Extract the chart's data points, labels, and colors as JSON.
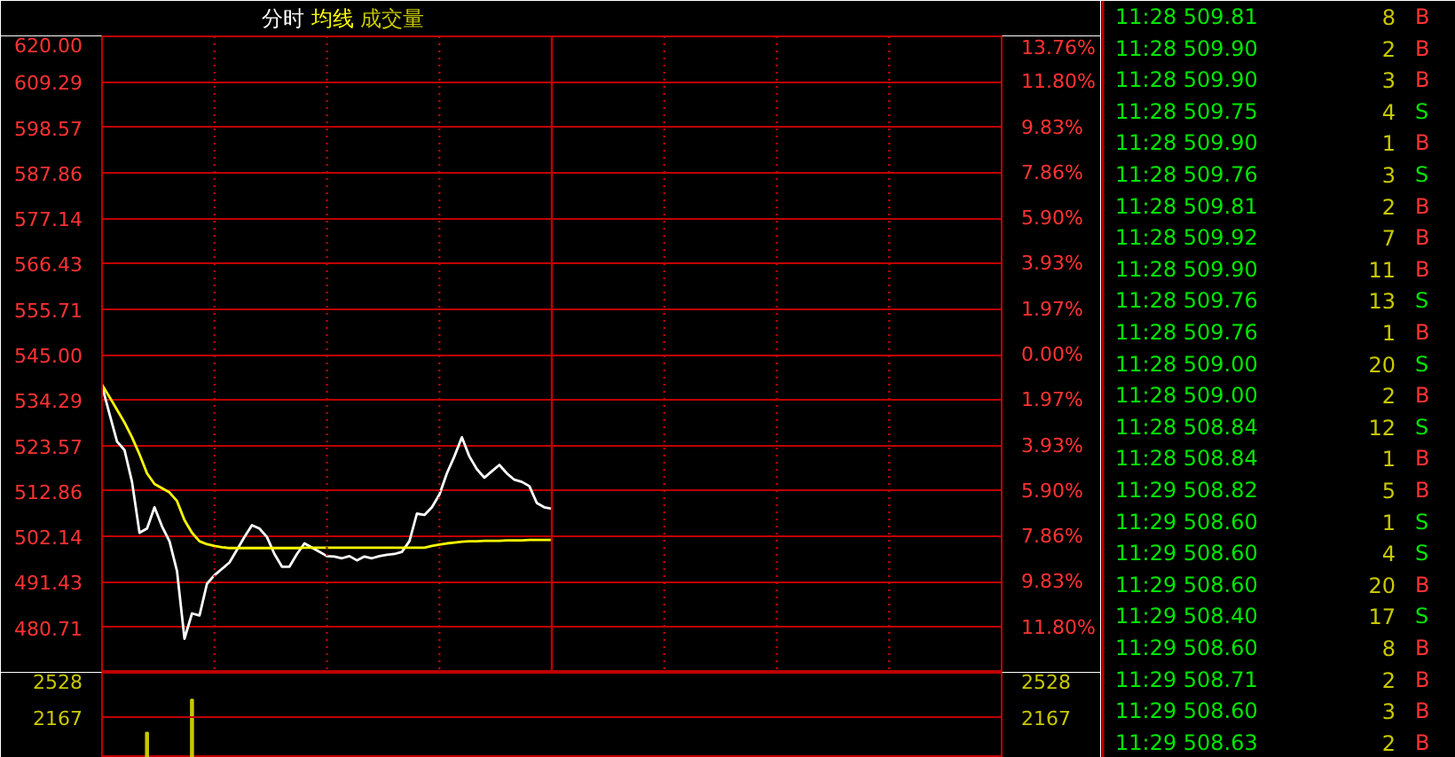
{
  "chart_data": [
    {
      "type": "line",
      "categories": [
        null,
        null,
        null,
        null,
        null,
        null,
        null,
        null,
        null,
        null,
        null,
        null,
        null,
        null,
        null,
        null,
        null,
        null,
        null,
        null,
        null,
        null,
        null,
        null,
        null,
        null,
        null,
        null,
        null,
        null,
        null,
        null,
        null,
        null,
        null,
        null,
        null,
        null,
        null,
        null,
        null,
        null,
        null,
        null,
        null,
        null,
        null,
        null,
        null,
        null,
        null,
        null,
        null,
        null,
        null,
        null,
        null,
        null,
        null,
        null,
        null,
        null,
        null,
        null,
        null,
        null,
        null,
        null,
        null,
        null,
        null,
        null,
        null,
        null,
        null,
        null,
        null,
        null,
        null,
        null,
        null,
        null,
        null,
        null,
        null,
        null,
        null,
        null,
        null,
        null,
        null,
        null,
        null,
        null,
        null,
        null,
        null,
        null,
        null,
        null,
        null,
        null,
        null,
        null,
        null,
        null,
        null,
        null,
        null,
        null,
        null,
        null,
        null,
        null,
        null,
        null,
        null,
        null,
        null,
        null,
        null
      ],
      "series": [
        {
          "name": "分时",
          "color": "#ffffff",
          "values": [
            537.6,
            531,
            524.5,
            522.5,
            515,
            503,
            504,
            509,
            504.5,
            501,
            494,
            478,
            484,
            483.5,
            491,
            493,
            494.5,
            496,
            499,
            502,
            504.8,
            504,
            502,
            498,
            495,
            495,
            498,
            500.5,
            499.5,
            498.5,
            497.5,
            497.4,
            497,
            497.5,
            496.5,
            497.4,
            497,
            497.5,
            497.8,
            498,
            498.5,
            501,
            507.5,
            507.2,
            509,
            512,
            517,
            521,
            525.5,
            521,
            518,
            516,
            517.5,
            519,
            517,
            515.5,
            515,
            514,
            510,
            509,
            508.7,
            null,
            null,
            null,
            null,
            null,
            null,
            null,
            null,
            null,
            null,
            null,
            null,
            null,
            null,
            null,
            null,
            null,
            null,
            null,
            null,
            null,
            null,
            null,
            null,
            null,
            null,
            null,
            null,
            null,
            null,
            null,
            null,
            null,
            null,
            null,
            null,
            null,
            null,
            null,
            null,
            null,
            null,
            null,
            null,
            null,
            null,
            null,
            null,
            null,
            null,
            null,
            null,
            null,
            null,
            null,
            null,
            null,
            null,
            null,
            null
          ]
        },
        {
          "name": "均线",
          "color": "#ffff00",
          "values": [
            537.9,
            535,
            532,
            529,
            525.5,
            521.5,
            517,
            514.5,
            513.5,
            512.5,
            510.5,
            506,
            503,
            501,
            500.3,
            499.9,
            499.6,
            499.4,
            499.4,
            499.4,
            499.4,
            499.4,
            499.4,
            499.4,
            499.4,
            499.4,
            499.4,
            499.5,
            499.5,
            499.5,
            499.5,
            499.5,
            499.5,
            499.5,
            499.5,
            499.5,
            499.5,
            499.5,
            499.5,
            499.5,
            499.5,
            499.5,
            499.5,
            499.5,
            499.9,
            500.2,
            500.5,
            500.7,
            500.9,
            501,
            501,
            501.1,
            501.1,
            501.1,
            501.2,
            501.2,
            501.2,
            501.3,
            501.3,
            501.3,
            501.3,
            null,
            null,
            null,
            null,
            null,
            null,
            null,
            null,
            null,
            null,
            null,
            null,
            null,
            null,
            null,
            null,
            null,
            null,
            null,
            null,
            null,
            null,
            null,
            null,
            null,
            null,
            null,
            null,
            null,
            null,
            null,
            null,
            null,
            null,
            null,
            null,
            null,
            null,
            null,
            null,
            null,
            null,
            null,
            null,
            null,
            null,
            null,
            null,
            null,
            null,
            null,
            null,
            null,
            null,
            null,
            null,
            null,
            null,
            null,
            null
          ]
        }
      ],
      "ylim": [
        470,
        620
      ],
      "yticks": [
        480.71,
        491.43,
        502.14,
        512.86,
        523.57,
        534.29,
        {
          "value": 545,
          "label": "545.00"
        },
        555.71,
        566.43,
        577.14,
        587.86,
        598.57,
        609.29,
        {
          "value": 620,
          "label": "620.00"
        }
      ],
      "y2lim": [
        -13.76,
        13.76
      ],
      "y2ticks": [
        {
          "value": -11.8,
          "label": "11.80%"
        },
        {
          "value": -9.83,
          "label": "9.83%"
        },
        {
          "value": -7.86,
          "label": "7.86%"
        },
        {
          "value": -5.9,
          "label": "5.90%"
        },
        {
          "value": -3.93,
          "label": "3.93%"
        },
        {
          "value": -1.97,
          "label": "1.97%"
        },
        {
          "value": 0,
          "label": "0.00%"
        },
        {
          "value": 1.97,
          "label": "1.97%"
        },
        {
          "value": 3.93,
          "label": "3.93%"
        },
        {
          "value": 5.9,
          "label": "5.90%"
        },
        {
          "value": 7.86,
          "label": "7.86%"
        },
        {
          "value": 9.83,
          "label": "9.83%"
        },
        {
          "value": 11.8,
          "label": "11.80%"
        },
        {
          "value": 13.76,
          "label": "13.76%"
        }
      ],
      "grid": true,
      "legend": "top left"
    },
    {
      "type": "bar",
      "categories": [
        null,
        null,
        null,
        null,
        null,
        null,
        null,
        null,
        null,
        null,
        null,
        null,
        null,
        null,
        null,
        null,
        null,
        null,
        null,
        null,
        null,
        null,
        null,
        null,
        null,
        null,
        null,
        null,
        null,
        null,
        null,
        null,
        null,
        null,
        null,
        null,
        null,
        null,
        null,
        null,
        null,
        null,
        null,
        null,
        null,
        null,
        null,
        null,
        null,
        null,
        null,
        null,
        null,
        null,
        null,
        null,
        null,
        null,
        null,
        null,
        null,
        null,
        null,
        null,
        null,
        null,
        null,
        null,
        null,
        null,
        null,
        null,
        null,
        null,
        null,
        null,
        null,
        null,
        null,
        null,
        null,
        null,
        null,
        null,
        null,
        null,
        null,
        null,
        null,
        null,
        null,
        null,
        null,
        null,
        null,
        null,
        null,
        null,
        null,
        null,
        null,
        null,
        null,
        null,
        null,
        null,
        null,
        null,
        null,
        null,
        null,
        null,
        null,
        null,
        null,
        null,
        null,
        null,
        null,
        null,
        null
      ],
      "series": [
        {
          "name": "成交量",
          "color": "#c8c800",
          "values": [
            null,
            null,
            null,
            null,
            null,
            null,
            2040,
            null,
            null,
            null,
            null,
            null,
            2310,
            null,
            null,
            null,
            null,
            null,
            null,
            null,
            null,
            null,
            null,
            null,
            null,
            null,
            null,
            null,
            null,
            null,
            null,
            null,
            null,
            null,
            null,
            null,
            null,
            null,
            null,
            null,
            null,
            null,
            null,
            null,
            null,
            null,
            null,
            null,
            null,
            null,
            null,
            null,
            null,
            null,
            null,
            null,
            null,
            null,
            null,
            null,
            null,
            null,
            null,
            null,
            null,
            null,
            null,
            null,
            null,
            null,
            null,
            null,
            null,
            null,
            null,
            null,
            null,
            null,
            null,
            null,
            null,
            null,
            null,
            null,
            null,
            null,
            null,
            null,
            null,
            null,
            null,
            null,
            null,
            null,
            null,
            null,
            null,
            null,
            null,
            null,
            null,
            null,
            null,
            null,
            null,
            null,
            null,
            null,
            null,
            null,
            null,
            null,
            null,
            null,
            null,
            null,
            null,
            null,
            null,
            null,
            null
          ]
        }
      ],
      "ylim": [
        1835,
        2528
      ],
      "yticks": [
        2167,
        2528
      ],
      "y2lim": [
        1835,
        2528
      ],
      "y2ticks": [
        2167,
        2528
      ],
      "ref_lines": [
        {
          "axis": "y",
          "value": 2167,
          "color": "#c00000"
        }
      ]
    },
    {
      "type": "other",
      "annotations": [
        "11:28 509.81 8 B",
        "11:28 509.90 2 B",
        "11:28 509.90 3 B",
        "11:28 509.75 4 S",
        "11:28 509.90 1 B",
        "11:28 509.76 3 S",
        "11:28 509.81 2 B",
        "11:28 509.92 7 B",
        "11:28 509.90 11 B",
        "11:28 509.76 13 S",
        "11:28 509.76 1 B",
        "11:28 509.00 20 S",
        "11:28 509.00 2 B",
        "11:28 508.84 12 S",
        "11:28 508.84 1 B",
        "11:29 508.82 5 B",
        "11:29 508.60 1 S",
        "11:29 508.60 4 S",
        "11:29 508.60 20 B",
        "11:29 508.40 17 S",
        "11:29 508.60 8 B",
        "11:29 508.71 2 B",
        "11:29 508.60 3 B",
        "11:29 508.63 2 B"
      ],
      "colors": [
        "#ff3232",
        "#ff3232",
        "#ff3232",
        "#00e600",
        "#ff3232",
        "#00e600",
        "#ff3232",
        "#ff3232",
        "#ff3232",
        "#00e600",
        "#ff3232",
        "#00e600",
        "#ff3232",
        "#00e600",
        "#ff3232",
        "#ff3232",
        "#00e600",
        "#00e600",
        "#ff3232",
        "#00e600",
        "#ff3232",
        "#ff3232",
        "#ff3232",
        "#ff3232"
      ]
    }
  ]
}
